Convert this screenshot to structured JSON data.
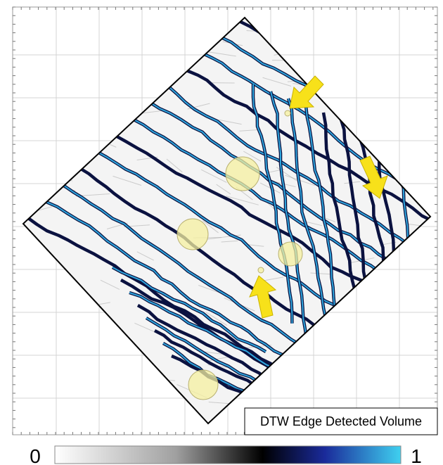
{
  "legend": {
    "title": "DTW Edge Detected Volume"
  },
  "colorbar": {
    "min_label": "0",
    "max_label": "1"
  }
}
